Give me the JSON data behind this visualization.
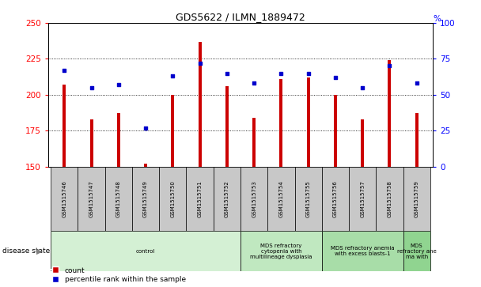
{
  "title": "GDS5622 / ILMN_1889472",
  "samples": [
    "GSM1515746",
    "GSM1515747",
    "GSM1515748",
    "GSM1515749",
    "GSM1515750",
    "GSM1515751",
    "GSM1515752",
    "GSM1515753",
    "GSM1515754",
    "GSM1515755",
    "GSM1515756",
    "GSM1515757",
    "GSM1515758",
    "GSM1515759"
  ],
  "counts": [
    207,
    183,
    187,
    152,
    200,
    237,
    206,
    184,
    211,
    212,
    200,
    183,
    224,
    187
  ],
  "percentiles": [
    67,
    55,
    57,
    27,
    63,
    72,
    65,
    58,
    65,
    65,
    62,
    55,
    70,
    58
  ],
  "ylim_left": [
    150,
    250
  ],
  "ylim_right": [
    0,
    100
  ],
  "yticks_left": [
    150,
    175,
    200,
    225,
    250
  ],
  "yticks_right": [
    0,
    25,
    50,
    75,
    100
  ],
  "bar_color": "#cc0000",
  "scatter_color": "#0000cc",
  "tick_area_color": "#c8c8c8",
  "disease_groups": [
    {
      "label": "control",
      "start": 0,
      "end": 7,
      "color": "#d4f0d4"
    },
    {
      "label": "MDS refractory\ncytopenia with\nmultilineage dysplasia",
      "start": 7,
      "end": 10,
      "color": "#c0e8c0"
    },
    {
      "label": "MDS refractory anemia\nwith excess blasts-1",
      "start": 10,
      "end": 13,
      "color": "#a8dda8"
    },
    {
      "label": "MDS\nrefractory ane\nma with",
      "start": 13,
      "end": 14,
      "color": "#90d490"
    }
  ],
  "disease_state_label": "disease state",
  "legend_count_label": "count",
  "legend_percentile_label": "percentile rank within the sample"
}
